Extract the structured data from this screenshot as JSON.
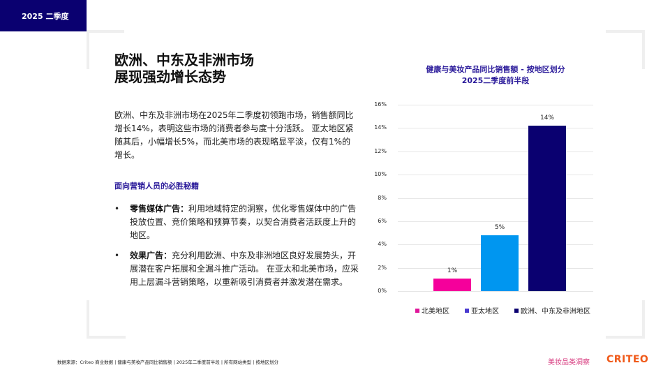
{
  "header": {
    "tab_label": "2025 二季度"
  },
  "main": {
    "title_line1": "欧洲、中东及非洲市场",
    "title_line2": "展现强劲增长态势",
    "summary": "欧洲、中东及非洲市场在2025年二季度初领跑市场，销售额同比增长14%，表明这些市场的消费者参与度十分活跃。 亚太地区紧随其后，小幅增长5%，而北美市场的表现略显平淡，仅有1%的增长。",
    "tips_heading": "面向营销人员的必胜秘籍",
    "tips": [
      {
        "bullet": "•",
        "label": "零售媒体广告：",
        "text": "利用地域特定的洞察，优化零售媒体中的广告投放位置、竞价策略和预算节奏，以契合消费者活跃度上升的地区。"
      },
      {
        "bullet": "•",
        "label": "效果广告：",
        "text": "充分利用欧洲、中东及非洲地区良好发展势头，开展潜在客户拓展和全漏斗推广活动。 在亚太和北美市场，应采用上层漏斗营销策略，以重新吸引消费者并激发潜在需求。"
      }
    ]
  },
  "chart_data": {
    "type": "bar",
    "title": "健康与美妆产品同比销售额 - 按地区划分",
    "subtitle": "2025二季度前半段",
    "categories": [
      "北美地区",
      "亚太地区",
      "欧洲、中东及非洲地区"
    ],
    "values": [
      1,
      5,
      14
    ],
    "plotted_values": [
      1.1,
      4.8,
      14.2
    ],
    "data_labels": [
      "1%",
      "5%",
      "14%"
    ],
    "colors": [
      "#f5009b",
      "#0096f0",
      "#0a0070"
    ],
    "legend_swatch_colors": [
      "#e0159a",
      "#4a3ad0",
      "#0a0070"
    ],
    "y_ticks": [
      "0%",
      "2%",
      "4%",
      "6%",
      "8%",
      "10%",
      "12%",
      "14%",
      "16%"
    ],
    "ylim": [
      0,
      16
    ],
    "xlabel": "",
    "ylabel": "",
    "grid": true,
    "legend_position": "bottom"
  },
  "footer": {
    "source": "数据来源：Criteo 商业数据 | 健康与美妆产品同比销售额 | 2025年二季度前半段 | 所有网站类型 | 按地区划分",
    "brand_text": "美妆品类洞察",
    "logo_text": "CRITEO"
  }
}
